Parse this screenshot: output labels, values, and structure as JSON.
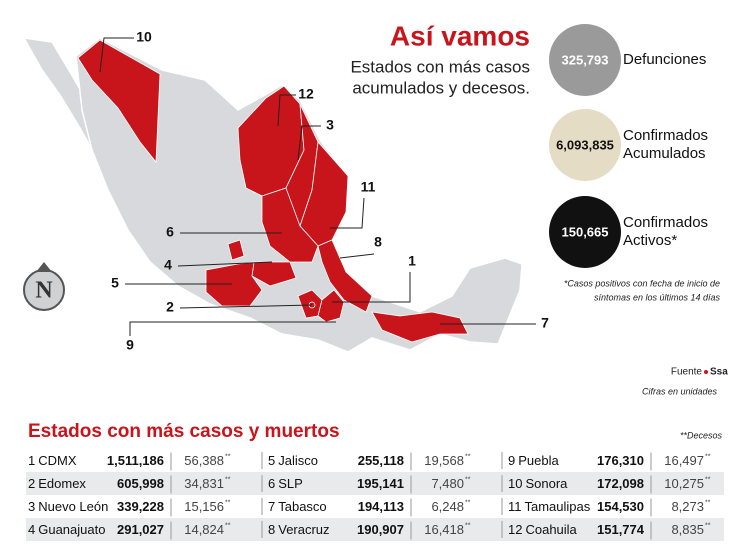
{
  "header": {
    "title": "Así vamos",
    "subtitle_lines": [
      "Estados con más casos",
      "acumulados y decesos."
    ]
  },
  "logo": "N",
  "stats": [
    {
      "value": "325,793",
      "label_lines": [
        "Defunciones"
      ]
    },
    {
      "value": "6,093,835",
      "label_lines": [
        "Confirmados",
        "Acumulados"
      ]
    },
    {
      "value": "150,665",
      "label_lines": [
        "Confirmados",
        "Activos*"
      ]
    }
  ],
  "note_lines": [
    "*Casos positivos con fecha de inicio de",
    "síntomas en los últimos 14 días"
  ],
  "source": {
    "label": "Fuente",
    "name": "Ssa",
    "units": "Cifras en unidades"
  },
  "map_labels": [
    "10",
    "12",
    "3",
    "11",
    "6",
    "8",
    "4",
    "1",
    "5",
    "2",
    "9",
    "7"
  ],
  "table": {
    "title": "Estados con más casos y muertos",
    "legend": "**Decesos",
    "rows": [
      {
        "rank": "1",
        "state": "CDMX",
        "cases": "1,511,186",
        "deaths": "56,388",
        "mark": "**"
      },
      {
        "rank": "2",
        "state": "Edomex",
        "cases": "605,998",
        "deaths": "34,831",
        "mark": "**"
      },
      {
        "rank": "3",
        "state": "Nuevo León",
        "cases": "339,228",
        "deaths": "15,156",
        "mark": "**"
      },
      {
        "rank": "4",
        "state": "Guanajuato",
        "cases": "291,027",
        "deaths": "14,824",
        "mark": "**"
      },
      {
        "rank": "5",
        "state": "Jalisco",
        "cases": "255,118",
        "deaths": "19,568",
        "mark": "**"
      },
      {
        "rank": "6",
        "state": "SLP",
        "cases": "195,141",
        "deaths": "7,480",
        "mark": "**"
      },
      {
        "rank": "7",
        "state": "Tabasco",
        "cases": "194,113",
        "deaths": "6,248",
        "mark": "**"
      },
      {
        "rank": "8",
        "state": "Veracruz",
        "cases": "190,907",
        "deaths": "16,418",
        "mark": "**"
      },
      {
        "rank": "9",
        "state": "Puebla",
        "cases": "176,310",
        "deaths": "16,497",
        "mark": "**"
      },
      {
        "rank": "10",
        "state": "Sonora",
        "cases": "172,098",
        "deaths": "10,275",
        "mark": "**"
      },
      {
        "rank": "11",
        "state": "Tamaulipas",
        "cases": "154,530",
        "deaths": "8,273",
        "mark": "**"
      },
      {
        "rank": "12",
        "state": "Coahuila",
        "cases": "151,774",
        "deaths": "8,835",
        "mark": "**"
      }
    ]
  }
}
